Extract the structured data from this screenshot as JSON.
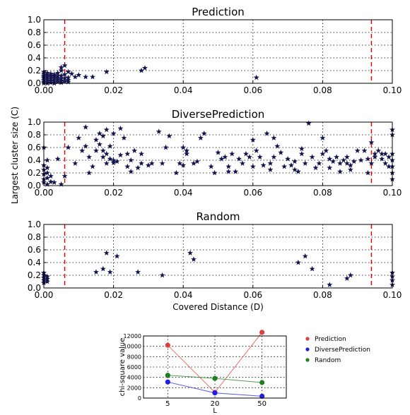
{
  "chart_data": [
    {
      "type": "scatter",
      "title": "Prediction",
      "xlim": [
        0,
        0.1
      ],
      "ylim": [
        0,
        1.0
      ],
      "x_ticks": [
        "0.00",
        "0.02",
        "0.04",
        "0.06",
        "0.08",
        "0.10"
      ],
      "y_ticks": [
        "0.0",
        "0.2",
        "0.4",
        "0.6",
        "0.8",
        "1.0"
      ],
      "grid": true,
      "thresholds_x": [
        0.006,
        0.094
      ],
      "points": [
        [
          0.0,
          0.0
        ],
        [
          0.0,
          0.02
        ],
        [
          0.0,
          0.05
        ],
        [
          0.0,
          0.08
        ],
        [
          0.0,
          0.1
        ],
        [
          0.0,
          0.12
        ],
        [
          0.0,
          0.15
        ],
        [
          0.0,
          0.18
        ],
        [
          0.001,
          0.0
        ],
        [
          0.001,
          0.03
        ],
        [
          0.001,
          0.06
        ],
        [
          0.001,
          0.1
        ],
        [
          0.001,
          0.13
        ],
        [
          0.001,
          0.16
        ],
        [
          0.002,
          0.01
        ],
        [
          0.002,
          0.04
        ],
        [
          0.002,
          0.08
        ],
        [
          0.002,
          0.11
        ],
        [
          0.002,
          0.15
        ],
        [
          0.003,
          0.0
        ],
        [
          0.003,
          0.03
        ],
        [
          0.003,
          0.06
        ],
        [
          0.003,
          0.09
        ],
        [
          0.003,
          0.12
        ],
        [
          0.003,
          0.14
        ],
        [
          0.004,
          0.02
        ],
        [
          0.004,
          0.05
        ],
        [
          0.004,
          0.08
        ],
        [
          0.004,
          0.11
        ],
        [
          0.004,
          0.16
        ],
        [
          0.005,
          0.01
        ],
        [
          0.005,
          0.04
        ],
        [
          0.005,
          0.07
        ],
        [
          0.005,
          0.12
        ],
        [
          0.005,
          0.2
        ],
        [
          0.005,
          0.25
        ],
        [
          0.006,
          0.03
        ],
        [
          0.006,
          0.08
        ],
        [
          0.006,
          0.14
        ],
        [
          0.006,
          0.28
        ],
        [
          0.007,
          0.02
        ],
        [
          0.007,
          0.05
        ],
        [
          0.007,
          0.09
        ],
        [
          0.007,
          0.18
        ],
        [
          0.008,
          0.15
        ],
        [
          0.009,
          0.1
        ],
        [
          0.01,
          0.13
        ],
        [
          0.012,
          0.1
        ],
        [
          0.014,
          0.1
        ],
        [
          0.018,
          0.18
        ],
        [
          0.028,
          0.2
        ],
        [
          0.029,
          0.24
        ],
        [
          0.061,
          0.09
        ]
      ]
    },
    {
      "type": "scatter",
      "title": "DiversePrediction",
      "xlim": [
        0,
        0.1
      ],
      "ylim": [
        0,
        1.0
      ],
      "x_ticks": [
        "0.00",
        "0.02",
        "0.04",
        "0.06",
        "0.08",
        "0.10"
      ],
      "y_ticks": [
        "0.0",
        "0.2",
        "0.4",
        "0.6",
        "0.8",
        "1.0"
      ],
      "grid": true,
      "thresholds_x": [
        0.006,
        0.094
      ],
      "points": [
        [
          0.0,
          0.05
        ],
        [
          0.0,
          0.1
        ],
        [
          0.0,
          0.18
        ],
        [
          0.0,
          0.25
        ],
        [
          0.0,
          0.32
        ],
        [
          0.0,
          0.6
        ],
        [
          0.001,
          0.02
        ],
        [
          0.001,
          0.12
        ],
        [
          0.001,
          0.2
        ],
        [
          0.001,
          0.28
        ],
        [
          0.001,
          0.4
        ],
        [
          0.002,
          0.06
        ],
        [
          0.002,
          0.15
        ],
        [
          0.003,
          0.05
        ],
        [
          0.004,
          0.42
        ],
        [
          0.005,
          0.02
        ],
        [
          0.006,
          0.15
        ],
        [
          0.007,
          0.6
        ],
        [
          0.009,
          0.35
        ],
        [
          0.01,
          0.75
        ],
        [
          0.011,
          0.55
        ],
        [
          0.012,
          0.62
        ],
        [
          0.012,
          0.92
        ],
        [
          0.013,
          0.2
        ],
        [
          0.013,
          0.45
        ],
        [
          0.014,
          0.3
        ],
        [
          0.015,
          0.72
        ],
        [
          0.015,
          0.55
        ],
        [
          0.016,
          0.65
        ],
        [
          0.016,
          0.82
        ],
        [
          0.017,
          0.45
        ],
        [
          0.017,
          0.78
        ],
        [
          0.017,
          0.55
        ],
        [
          0.018,
          0.5
        ],
        [
          0.018,
          0.88
        ],
        [
          0.018,
          0.35
        ],
        [
          0.019,
          0.62
        ],
        [
          0.019,
          0.42
        ],
        [
          0.02,
          0.4
        ],
        [
          0.02,
          0.82
        ],
        [
          0.02,
          0.36
        ],
        [
          0.021,
          0.38
        ],
        [
          0.022,
          0.9
        ],
        [
          0.022,
          0.48
        ],
        [
          0.023,
          0.75
        ],
        [
          0.024,
          0.5
        ],
        [
          0.024,
          0.3
        ],
        [
          0.025,
          0.4
        ],
        [
          0.025,
          0.22
        ],
        [
          0.026,
          0.55
        ],
        [
          0.027,
          0.28
        ],
        [
          0.028,
          0.35
        ],
        [
          0.028,
          0.5
        ],
        [
          0.03,
          0.32
        ],
        [
          0.031,
          0.35
        ],
        [
          0.033,
          0.85
        ],
        [
          0.034,
          0.35
        ],
        [
          0.035,
          0.6
        ],
        [
          0.036,
          0.78
        ],
        [
          0.038,
          0.2
        ],
        [
          0.039,
          0.35
        ],
        [
          0.04,
          0.6
        ],
        [
          0.041,
          0.55
        ],
        [
          0.041,
          0.5
        ],
        [
          0.043,
          0.35
        ],
        [
          0.044,
          0.38
        ],
        [
          0.045,
          0.75
        ],
        [
          0.046,
          0.82
        ],
        [
          0.048,
          0.3
        ],
        [
          0.049,
          0.2
        ],
        [
          0.05,
          0.52
        ],
        [
          0.051,
          0.42
        ],
        [
          0.052,
          0.45
        ],
        [
          0.053,
          0.3
        ],
        [
          0.054,
          0.5
        ],
        [
          0.055,
          0.22
        ],
        [
          0.056,
          0.42
        ],
        [
          0.057,
          0.35
        ],
        [
          0.058,
          0.5
        ],
        [
          0.059,
          0.45
        ],
        [
          0.06,
          0.72
        ],
        [
          0.061,
          0.55
        ],
        [
          0.062,
          0.45
        ],
        [
          0.063,
          0.32
        ],
        [
          0.064,
          0.82
        ],
        [
          0.065,
          0.35
        ],
        [
          0.065,
          0.25
        ],
        [
          0.066,
          0.45
        ],
        [
          0.066,
          0.75
        ],
        [
          0.067,
          0.62
        ],
        [
          0.068,
          0.52
        ],
        [
          0.069,
          0.3
        ],
        [
          0.07,
          0.42
        ],
        [
          0.071,
          0.32
        ],
        [
          0.072,
          0.25
        ],
        [
          0.072,
          0.38
        ],
        [
          0.073,
          0.22
        ],
        [
          0.074,
          0.5
        ],
        [
          0.074,
          0.58
        ],
        [
          0.075,
          0.35
        ],
        [
          0.076,
          0.98
        ],
        [
          0.077,
          0.45
        ],
        [
          0.078,
          0.28
        ],
        [
          0.079,
          0.35
        ],
        [
          0.08,
          0.75
        ],
        [
          0.08,
          0.5
        ],
        [
          0.081,
          0.55
        ],
        [
          0.082,
          0.42
        ],
        [
          0.082,
          0.28
        ],
        [
          0.083,
          0.38
        ],
        [
          0.084,
          0.45
        ],
        [
          0.085,
          0.35
        ],
        [
          0.085,
          0.22
        ],
        [
          0.086,
          0.4
        ],
        [
          0.087,
          0.35
        ],
        [
          0.087,
          0.45
        ],
        [
          0.088,
          0.25
        ],
        [
          0.088,
          0.32
        ],
        [
          0.089,
          0.38
        ],
        [
          0.09,
          0.55
        ],
        [
          0.091,
          0.4
        ],
        [
          0.092,
          0.55
        ],
        [
          0.093,
          0.42
        ],
        [
          0.093,
          0.2
        ],
        [
          0.094,
          0.68
        ],
        [
          0.094,
          0.35
        ],
        [
          0.095,
          0.5
        ],
        [
          0.095,
          0.45
        ],
        [
          0.096,
          0.55
        ],
        [
          0.097,
          0.5
        ],
        [
          0.097,
          0.42
        ],
        [
          0.098,
          0.35
        ],
        [
          0.098,
          0.5
        ],
        [
          0.099,
          0.3
        ],
        [
          0.099,
          0.45
        ],
        [
          0.1,
          0.1
        ],
        [
          0.1,
          0.2
        ],
        [
          0.1,
          0.3
        ],
        [
          0.1,
          0.4
        ],
        [
          0.1,
          0.5
        ],
        [
          0.1,
          0.8
        ],
        [
          0.1,
          0.88
        ],
        [
          0.06,
          0.3
        ],
        [
          0.04,
          0.32
        ],
        [
          0.053,
          0.22
        ]
      ]
    },
    {
      "type": "scatter",
      "title": "Random",
      "xlabel": "Covered Distance (D)",
      "xlim": [
        0,
        0.1
      ],
      "ylim": [
        0,
        1.0
      ],
      "x_ticks": [
        "0.00",
        "0.02",
        "0.04",
        "0.06",
        "0.08",
        "0.10"
      ],
      "y_ticks": [
        "0.0",
        "0.2",
        "0.4",
        "0.6",
        "0.8",
        "1.0"
      ],
      "grid": true,
      "thresholds_x": [
        0.006,
        0.094
      ],
      "points": [
        [
          0.0,
          0.08
        ],
        [
          0.0,
          0.12
        ],
        [
          0.0,
          0.16
        ],
        [
          0.0,
          0.2
        ],
        [
          0.0,
          0.24
        ],
        [
          0.001,
          0.1
        ],
        [
          0.001,
          0.14
        ],
        [
          0.001,
          0.18
        ],
        [
          0.015,
          0.25
        ],
        [
          0.017,
          0.3
        ],
        [
          0.018,
          0.55
        ],
        [
          0.019,
          0.25
        ],
        [
          0.021,
          0.5
        ],
        [
          0.027,
          0.25
        ],
        [
          0.034,
          0.2
        ],
        [
          0.042,
          0.55
        ],
        [
          0.043,
          0.45
        ],
        [
          0.073,
          0.4
        ],
        [
          0.075,
          0.5
        ],
        [
          0.077,
          0.3
        ],
        [
          0.082,
          0.05
        ],
        [
          0.087,
          0.15
        ],
        [
          0.088,
          0.2
        ],
        [
          0.1,
          0.05
        ],
        [
          0.1,
          0.12
        ],
        [
          0.1,
          0.18
        ],
        [
          0.1,
          0.24
        ]
      ]
    },
    {
      "type": "line",
      "xlabel": "L",
      "ylabel": "chi-square value",
      "categories": [
        "5",
        "20",
        "50"
      ],
      "ylim": [
        0,
        12000
      ],
      "y_ticks": [
        "0",
        "2000",
        "4000",
        "6000",
        "8000",
        "10000",
        "12000"
      ],
      "legend_position": "right",
      "grid": true,
      "series": [
        {
          "name": "Prediction",
          "color": "#e04040",
          "values": [
            10200,
            1100,
            12700
          ]
        },
        {
          "name": "DiversePrediction",
          "color": "#2020e0",
          "values": [
            3100,
            1000,
            350
          ]
        },
        {
          "name": "Random",
          "color": "#208020",
          "values": [
            4400,
            3800,
            3000
          ]
        }
      ]
    }
  ],
  "shared_ylabel": "Largest cluster size (C)"
}
